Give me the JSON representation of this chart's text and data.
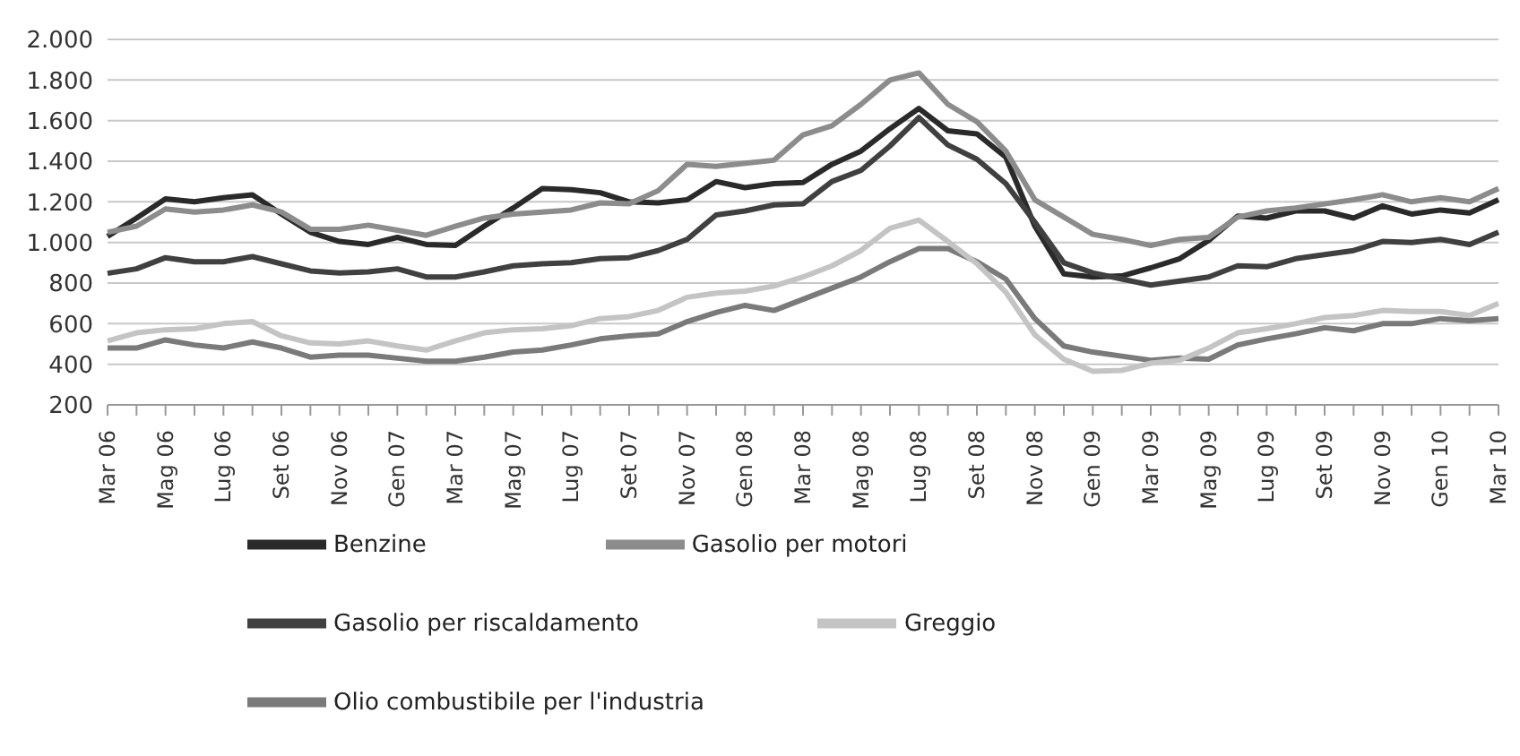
{
  "chart_data": {
    "type": "line",
    "categories": [
      "Mar 06",
      null,
      "Mag 06",
      null,
      "Lug 06",
      null,
      "Set 06",
      null,
      "Nov 06",
      null,
      "Gen 07",
      null,
      "Mar 07",
      null,
      "Mag 07",
      null,
      "Lug 07",
      null,
      "Set 07",
      null,
      "Nov 07",
      null,
      "Gen 08",
      null,
      "Mar 08",
      null,
      "Mag 08",
      null,
      "Lug 08",
      null,
      "Set 08",
      null,
      "Nov 08",
      null,
      "Gen 09",
      null,
      "Mar 09",
      null,
      "Mag 09",
      null,
      "Lug 09",
      null,
      "Set 09",
      null,
      "Nov 09",
      null,
      "Gen 10",
      null,
      "Mar 10"
    ],
    "series": [
      {
        "name": "Benzine",
        "color": "#2a2a2a",
        "values": [
          1030,
          1120,
          1215,
          1200,
          1220,
          1235,
          1140,
          1050,
          1005,
          990,
          1025,
          990,
          985,
          1080,
          1170,
          1265,
          1260,
          1245,
          1200,
          1195,
          1210,
          1300,
          1270,
          1290,
          1295,
          1385,
          1450,
          1560,
          1660,
          1550,
          1535,
          1420,
          1080,
          845,
          830,
          835,
          875,
          920,
          1010,
          1130,
          1120,
          1155,
          1155,
          1120,
          1180,
          1140,
          1160,
          1145,
          1210
        ]
      },
      {
        "name": "Gasolio per motori",
        "color": "#8c8c8c",
        "values": [
          1050,
          1080,
          1165,
          1150,
          1160,
          1185,
          1150,
          1065,
          1065,
          1085,
          1060,
          1035,
          1080,
          1120,
          1140,
          1150,
          1160,
          1195,
          1190,
          1255,
          1385,
          1375,
          1390,
          1405,
          1530,
          1575,
          1680,
          1800,
          1835,
          1680,
          1595,
          1450,
          1210,
          1125,
          1040,
          1015,
          985,
          1015,
          1025,
          1125,
          1155,
          1170,
          1190,
          1210,
          1235,
          1200,
          1220,
          1200,
          1265
        ]
      },
      {
        "name": "Gasolio per riscaldamento",
        "color": "#404040",
        "values": [
          848,
          870,
          925,
          905,
          905,
          930,
          895,
          860,
          850,
          855,
          870,
          830,
          830,
          855,
          885,
          895,
          900,
          920,
          925,
          960,
          1015,
          1135,
          1155,
          1185,
          1190,
          1300,
          1355,
          1475,
          1615,
          1480,
          1410,
          1290,
          1100,
          900,
          850,
          820,
          790,
          810,
          830,
          885,
          880,
          920,
          940,
          960,
          1005,
          1000,
          1015,
          990,
          1050
        ]
      },
      {
        "name": "Olio combustibile per l'industria",
        "color": "#7a7a7a",
        "values": [
          480,
          480,
          520,
          495,
          480,
          510,
          480,
          435,
          445,
          445,
          430,
          415,
          415,
          435,
          460,
          470,
          495,
          525,
          540,
          550,
          610,
          655,
          690,
          665,
          720,
          775,
          830,
          905,
          970,
          970,
          905,
          820,
          625,
          490,
          460,
          440,
          420,
          430,
          425,
          495,
          525,
          550,
          580,
          565,
          600,
          600,
          625,
          615,
          625
        ]
      },
      {
        "name": "Greggio",
        "color": "#c4c4c4",
        "values": [
          515,
          555,
          570,
          575,
          600,
          610,
          540,
          505,
          500,
          515,
          490,
          470,
          515,
          555,
          570,
          575,
          590,
          625,
          635,
          665,
          730,
          750,
          760,
          785,
          830,
          885,
          960,
          1070,
          1110,
          1005,
          895,
          755,
          545,
          425,
          365,
          370,
          405,
          420,
          480,
          555,
          575,
          600,
          630,
          640,
          665,
          660,
          660,
          640,
          700
        ]
      }
    ],
    "ylim": [
      200,
      2000
    ],
    "yticks": [
      200,
      400,
      600,
      800,
      {
        "value": 1000,
        "label": "1.000"
      },
      {
        "value": 1200,
        "label": "1.200"
      },
      {
        "value": 1400,
        "label": "1.400"
      },
      {
        "value": 1600,
        "label": "1.600"
      },
      {
        "value": 1800,
        "label": "1.800"
      },
      {
        "value": 2000,
        "label": "2.000"
      }
    ],
    "grid": "y",
    "legend": "bottom",
    "line_style": "solid",
    "marker": "none"
  }
}
